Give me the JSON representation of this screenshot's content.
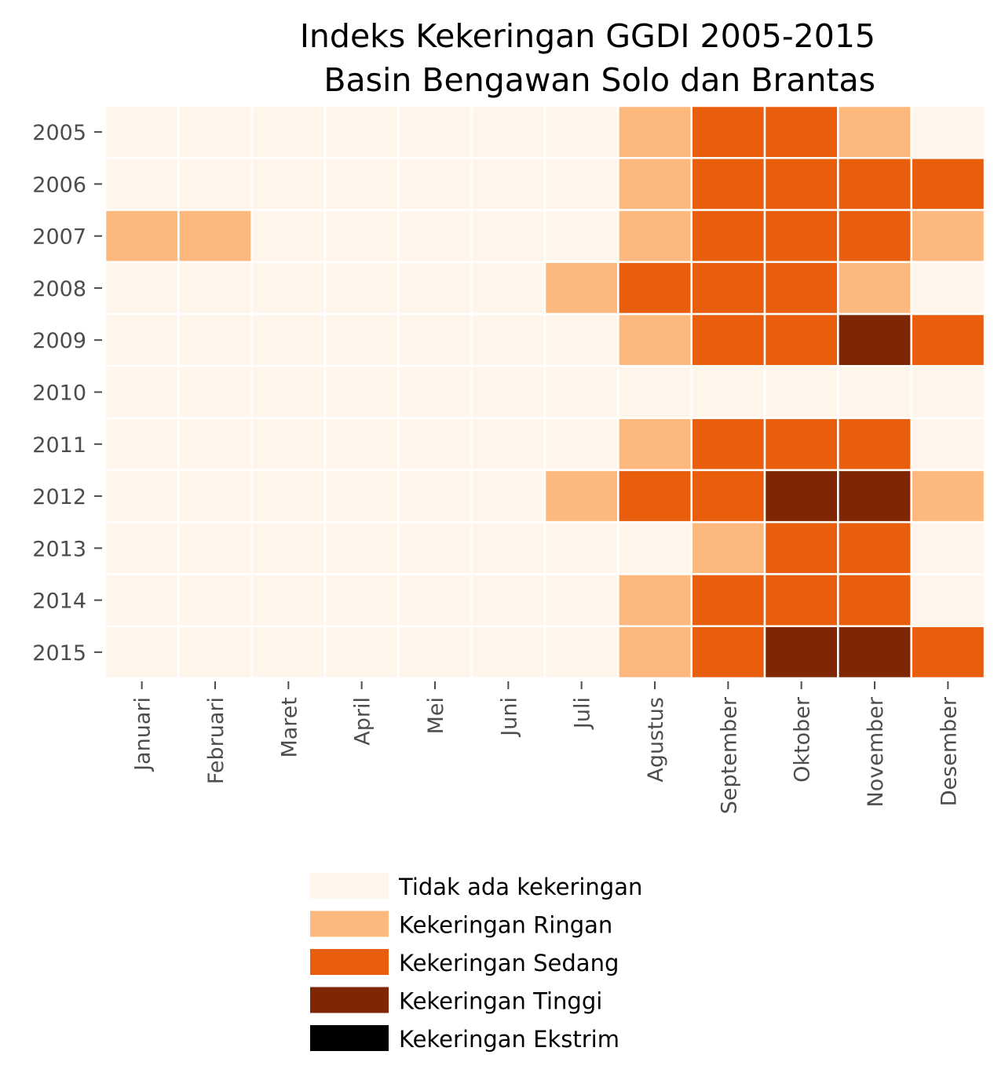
{
  "chart_data": {
    "type": "heatmap",
    "title": [
      "Indeks Kekeringan GGDI 2005-2015",
      "Basin Bengawan Solo dan Brantas"
    ],
    "xlabel": "",
    "ylabel": "",
    "x_categories": [
      "Januari",
      "Februari",
      "Maret",
      "April",
      "Mei",
      "Juni",
      "Juli",
      "Agustus",
      "September",
      "Oktober",
      "November",
      "Desember"
    ],
    "y_categories": [
      "2005",
      "2006",
      "2007",
      "2008",
      "2009",
      "2010",
      "2011",
      "2012",
      "2013",
      "2014",
      "2015"
    ],
    "levels": [
      {
        "label": "Tidak ada kekeringan",
        "color": "#fff5eb"
      },
      {
        "label": "Kekeringan Ringan",
        "color": "#fdb97d"
      },
      {
        "label": "Kekeringan Sedang",
        "color": "#e95e0d"
      },
      {
        "label": "Kekeringan Tinggi",
        "color": "#7f2704"
      },
      {
        "label": "Kekeringan Ekstrim",
        "color": "#000000"
      }
    ],
    "values": [
      [
        0,
        0,
        0,
        0,
        0,
        0,
        0,
        1,
        2,
        2,
        1,
        0
      ],
      [
        0,
        0,
        0,
        0,
        0,
        0,
        0,
        1,
        2,
        2,
        2,
        2
      ],
      [
        1,
        1,
        0,
        0,
        0,
        0,
        0,
        1,
        2,
        2,
        2,
        1
      ],
      [
        0,
        0,
        0,
        0,
        0,
        0,
        1,
        2,
        2,
        2,
        1,
        0
      ],
      [
        0,
        0,
        0,
        0,
        0,
        0,
        0,
        1,
        2,
        2,
        3,
        2
      ],
      [
        0,
        0,
        0,
        0,
        0,
        0,
        0,
        0,
        0,
        0,
        0,
        0
      ],
      [
        0,
        0,
        0,
        0,
        0,
        0,
        0,
        1,
        2,
        2,
        2,
        0
      ],
      [
        0,
        0,
        0,
        0,
        0,
        0,
        1,
        2,
        2,
        3,
        3,
        1
      ],
      [
        0,
        0,
        0,
        0,
        0,
        0,
        0,
        0,
        1,
        2,
        2,
        0
      ],
      [
        0,
        0,
        0,
        0,
        0,
        0,
        0,
        1,
        2,
        2,
        2,
        0
      ],
      [
        0,
        0,
        0,
        0,
        0,
        0,
        0,
        1,
        2,
        3,
        3,
        2
      ]
    ],
    "grid": false,
    "legend_position": "bottom"
  }
}
